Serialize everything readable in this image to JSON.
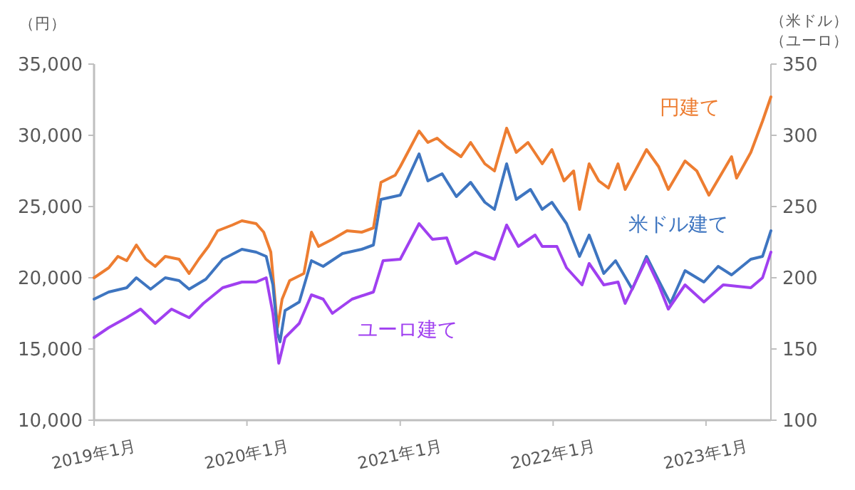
{
  "chart_data": {
    "type": "line",
    "ylabel": "（円）",
    "y2label": "（米ドル）（ユーロ）",
    "xlim": [
      "2019-01-01",
      "2023-06-05"
    ],
    "ylim": [
      10000,
      35000
    ],
    "yticks": [
      {
        "value": 10000,
        "label": "10,000"
      },
      {
        "value": 15000,
        "label": "15,000"
      },
      {
        "value": 20000,
        "label": "20,000"
      },
      {
        "value": 25000,
        "label": "25,000"
      },
      {
        "value": 30000,
        "label": "30,000"
      },
      {
        "value": 35000,
        "label": "35,000"
      }
    ],
    "y2lim": [
      100,
      350
    ],
    "y2ticks": [
      100,
      150,
      200,
      250,
      300,
      350
    ],
    "xticks": [
      {
        "value": "2019-01-01",
        "label": "2019年1月"
      },
      {
        "value": "2020-01-01",
        "label": "2020年1月"
      },
      {
        "value": "2021-01-01",
        "label": "2021年1月"
      },
      {
        "value": "2022-01-01",
        "label": "2022年1月"
      },
      {
        "value": "2023-01-01",
        "label": "2023年1月"
      }
    ],
    "grid": false,
    "marker": "none",
    "line_style": "solid",
    "series": [
      {
        "name": "円建て",
        "color": "#ed7d31",
        "x": [
          "2019-01-01",
          "2019-02-05",
          "2019-02-27",
          "2019-03-20",
          "2019-04-12",
          "2019-05-05",
          "2019-05-27",
          "2019-06-20",
          "2019-07-23",
          "2019-08-16",
          "2019-09-08",
          "2019-10-01",
          "2019-10-23",
          "2019-11-27",
          "2019-12-20",
          "2020-01-23",
          "2020-02-10",
          "2020-02-27",
          "2020-03-14",
          "2020-03-25",
          "2020-04-12",
          "2020-05-16",
          "2020-06-03",
          "2020-06-20",
          "2020-07-23",
          "2020-08-27",
          "2020-10-01",
          "2020-10-29",
          "2020-11-16",
          "2020-12-20",
          "2021-01-01",
          "2021-02-15",
          "2021-03-08",
          "2021-03-30",
          "2021-04-22",
          "2021-05-26",
          "2021-06-18",
          "2021-07-22",
          "2021-08-14",
          "2021-09-12",
          "2021-10-05",
          "2021-11-02",
          "2021-12-06",
          "2021-12-29",
          "2022-01-27",
          "2022-02-19",
          "2022-03-05",
          "2022-03-28",
          "2022-04-20",
          "2022-05-13",
          "2022-06-05",
          "2022-06-22",
          "2022-08-12",
          "2022-09-10",
          "2022-10-03",
          "2022-11-12",
          "2022-12-10",
          "2023-01-08",
          "2023-02-11",
          "2023-03-03",
          "2023-03-15",
          "2023-04-18",
          "2023-05-16",
          "2023-06-05"
        ],
        "values": [
          20000,
          20700,
          21500,
          21200,
          22300,
          21300,
          20800,
          21500,
          21300,
          20300,
          21300,
          22200,
          23300,
          23700,
          24000,
          23800,
          23200,
          21800,
          16500,
          18500,
          19800,
          20300,
          23200,
          22200,
          22700,
          23300,
          23200,
          23500,
          26700,
          27200,
          27800,
          30300,
          29500,
          29800,
          29200,
          28500,
          29500,
          28000,
          27500,
          30500,
          28800,
          29500,
          28000,
          29000,
          26800,
          27500,
          24800,
          28000,
          26800,
          26300,
          28000,
          26200,
          29000,
          27800,
          26200,
          28200,
          27500,
          25800,
          27500,
          28500,
          27000,
          28800,
          31000,
          32700
        ]
      },
      {
        "name": "米ドル建て",
        "color": "#3e75c0",
        "axis": "y2",
        "x": [
          "2019-01-01",
          "2019-02-05",
          "2019-03-20",
          "2019-04-12",
          "2019-05-16",
          "2019-06-20",
          "2019-07-23",
          "2019-08-16",
          "2019-09-25",
          "2019-11-04",
          "2019-12-20",
          "2020-01-23",
          "2020-02-16",
          "2020-03-03",
          "2020-03-14",
          "2020-03-20",
          "2020-04-01",
          "2020-05-05",
          "2020-06-03",
          "2020-07-01",
          "2020-08-16",
          "2020-10-01",
          "2020-10-29",
          "2020-11-16",
          "2021-01-01",
          "2021-02-15",
          "2021-03-08",
          "2021-04-11",
          "2021-05-15",
          "2021-06-18",
          "2021-07-22",
          "2021-08-14",
          "2021-09-12",
          "2021-10-05",
          "2021-11-08",
          "2021-12-06",
          "2021-12-29",
          "2022-02-02",
          "2022-03-05",
          "2022-03-28",
          "2022-05-02",
          "2022-05-30",
          "2022-07-09",
          "2022-08-12",
          "2022-09-10",
          "2022-10-08",
          "2022-11-12",
          "2022-12-27",
          "2023-01-30",
          "2023-03-03",
          "2023-04-18",
          "2023-05-16",
          "2023-06-05"
        ],
        "values": [
          185,
          190,
          193,
          200,
          192,
          200,
          198,
          192,
          199,
          213,
          220,
          218,
          215,
          195,
          161,
          155,
          177,
          183,
          212,
          208,
          217,
          220,
          223,
          255,
          258,
          287,
          268,
          273,
          257,
          267,
          253,
          248,
          280,
          255,
          262,
          248,
          253,
          238,
          215,
          230,
          203,
          212,
          192,
          215,
          198,
          182,
          205,
          197,
          208,
          202,
          213,
          215,
          233
        ]
      },
      {
        "name": "ユーロ建て",
        "color": "#a040f0",
        "axis": "y2",
        "x": [
          "2019-01-01",
          "2019-02-05",
          "2019-03-20",
          "2019-04-22",
          "2019-05-27",
          "2019-07-05",
          "2019-08-16",
          "2019-09-19",
          "2019-11-04",
          "2019-12-20",
          "2020-01-23",
          "2020-02-16",
          "2020-03-03",
          "2020-03-17",
          "2020-04-01",
          "2020-05-05",
          "2020-06-03",
          "2020-07-01",
          "2020-07-23",
          "2020-09-08",
          "2020-10-29",
          "2020-11-21",
          "2021-01-01",
          "2021-02-15",
          "2021-03-19",
          "2021-04-22",
          "2021-05-15",
          "2021-06-29",
          "2021-08-14",
          "2021-09-12",
          "2021-10-10",
          "2021-11-19",
          "2021-12-06",
          "2022-01-10",
          "2022-02-02",
          "2022-03-11",
          "2022-03-28",
          "2022-05-02",
          "2022-06-05",
          "2022-06-22",
          "2022-08-12",
          "2022-09-10",
          "2022-10-03",
          "2022-11-12",
          "2022-12-27",
          "2023-02-11",
          "2023-04-18",
          "2023-05-16",
          "2023-06-05"
        ],
        "values": [
          158,
          165,
          172,
          178,
          168,
          178,
          172,
          182,
          193,
          197,
          197,
          200,
          175,
          140,
          158,
          168,
          188,
          185,
          175,
          185,
          190,
          212,
          213,
          238,
          227,
          228,
          210,
          218,
          213,
          237,
          222,
          230,
          222,
          222,
          207,
          195,
          210,
          195,
          197,
          182,
          213,
          195,
          178,
          195,
          183,
          195,
          193,
          200,
          218
        ]
      }
    ]
  }
}
